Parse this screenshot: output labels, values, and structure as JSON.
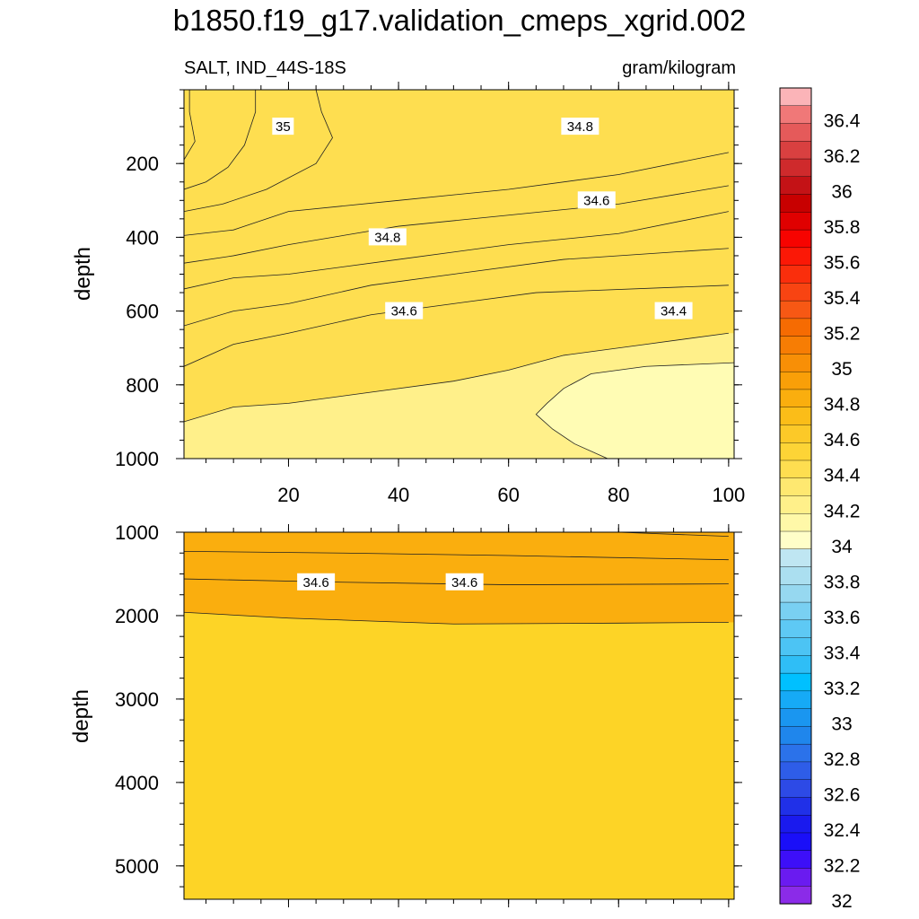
{
  "title": "b1850.f19_g17.validation_cmeps_xgrid.002",
  "chart_data": [
    {
      "type": "contour",
      "panel": "upper",
      "left_string": "SALT, IND_44S-18S",
      "right_string": "gram/kilogram",
      "xlabel": "",
      "ylabel": "depth",
      "xlim": [
        1,
        101
      ],
      "ylim": [
        1000,
        0
      ],
      "xticks": [
        20,
        40,
        60,
        80,
        100
      ],
      "yticks": [
        200,
        400,
        600,
        800,
        1000
      ],
      "contour_levels": [
        35.0,
        34.9,
        34.8,
        34.7,
        34.6,
        34.5,
        34.4
      ],
      "contours": [
        {
          "level": 35.1,
          "points": [
            [
              1,
              190
            ],
            [
              3,
              140
            ],
            [
              2,
              60
            ],
            [
              2,
              0
            ]
          ]
        },
        {
          "level": 35.0,
          "points": [
            [
              1,
              270
            ],
            [
              5,
              250
            ],
            [
              9,
              210
            ],
            [
              12,
              150
            ],
            [
              14,
              60
            ],
            [
              14,
              0
            ]
          ]
        },
        {
          "level": 34.9,
          "points": [
            [
              1,
              330
            ],
            [
              8,
              310
            ],
            [
              16,
              270
            ],
            [
              25,
              200
            ],
            [
              28,
              130
            ],
            [
              26,
              60
            ],
            [
              25,
              0
            ]
          ]
        },
        {
          "level": 34.8,
          "points": [
            [
              1,
              395
            ],
            [
              10,
              380
            ],
            [
              20,
              330
            ],
            [
              40,
              300
            ],
            [
              60,
              270
            ],
            [
              80,
              230
            ],
            [
              100,
              170
            ]
          ]
        },
        {
          "level": 34.7,
          "points": [
            [
              1,
              470
            ],
            [
              10,
              450
            ],
            [
              20,
              420
            ],
            [
              40,
              370
            ],
            [
              60,
              340
            ],
            [
              80,
              310
            ],
            [
              100,
              260
            ]
          ]
        },
        {
          "level": 34.6,
          "points": [
            [
              1,
              540
            ],
            [
              10,
              510
            ],
            [
              20,
              500
            ],
            [
              40,
              460
            ],
            [
              60,
              420
            ],
            [
              80,
              390
            ],
            [
              100,
              330
            ]
          ]
        },
        {
          "level": 34.5,
          "points": [
            [
              1,
              640
            ],
            [
              10,
              600
            ],
            [
              20,
              580
            ],
            [
              35,
              530
            ],
            [
              50,
              500
            ],
            [
              70,
              460
            ],
            [
              100,
              430
            ]
          ]
        },
        {
          "level": 34.4,
          "points": [
            [
              1,
              750
            ],
            [
              10,
              690
            ],
            [
              20,
              660
            ],
            [
              35,
              610
            ],
            [
              50,
              580
            ],
            [
              65,
              550
            ],
            [
              100,
              530
            ]
          ]
        },
        {
          "level": 34.3,
          "points": [
            [
              1,
              900
            ],
            [
              10,
              860
            ],
            [
              20,
              850
            ],
            [
              35,
              820
            ],
            [
              50,
              790
            ],
            [
              60,
              760
            ],
            [
              70,
              720
            ],
            [
              85,
              690
            ],
            [
              100,
              660
            ]
          ]
        },
        {
          "level": 34.2,
          "points": [
            [
              101,
              740
            ],
            [
              85,
              750
            ],
            [
              75,
              770
            ],
            [
              70,
              810
            ],
            [
              67,
              850
            ],
            [
              65,
              880
            ],
            [
              68,
              920
            ],
            [
              72,
              960
            ],
            [
              78,
              1000
            ]
          ]
        }
      ],
      "contour_labels": [
        {
          "text": "35",
          "x": 19,
          "y": 100
        },
        {
          "text": "34.8",
          "x": 38,
          "y": 400
        },
        {
          "text": "34.8",
          "x": 73,
          "y": 100
        },
        {
          "text": "34.6",
          "x": 41,
          "y": 600
        },
        {
          "text": "34.6",
          "x": 76,
          "y": 300
        },
        {
          "text": "34.4",
          "x": 90,
          "y": 600
        }
      ]
    },
    {
      "type": "contour",
      "panel": "lower",
      "xlabel": "",
      "ylabel": "depth",
      "xlim": [
        1,
        101
      ],
      "ylim": [
        5400,
        1000
      ],
      "yticks": [
        1000,
        2000,
        3000,
        4000,
        5000
      ],
      "contour_levels": [
        34.4,
        34.5,
        34.6,
        34.7
      ],
      "contours": [
        {
          "level": 34.4,
          "points": [
            [
              1,
              1000
            ],
            [
              80,
              1000
            ],
            [
              100,
              1050
            ]
          ]
        },
        {
          "level": 34.5,
          "points": [
            [
              1,
              1230
            ],
            [
              30,
              1250
            ],
            [
              60,
              1280
            ],
            [
              100,
              1330
            ]
          ]
        },
        {
          "level": 34.6,
          "points": [
            [
              1,
              1560
            ],
            [
              30,
              1600
            ],
            [
              60,
              1630
            ],
            [
              100,
              1620
            ]
          ]
        },
        {
          "level": 34.7,
          "points": [
            [
              1,
              1960
            ],
            [
              20,
              2030
            ],
            [
              50,
              2100
            ],
            [
              80,
              2090
            ],
            [
              100,
              2080
            ]
          ]
        }
      ],
      "contour_labels": [
        {
          "text": "34.6",
          "x": 25,
          "y": 1600
        },
        {
          "text": "34.6",
          "x": 52,
          "y": 1600
        }
      ]
    }
  ],
  "colorbar": {
    "labels": [
      "36.4",
      "36.2",
      "36",
      "35.8",
      "35.6",
      "35.4",
      "35.2",
      "35",
      "34.8",
      "34.6",
      "34.4",
      "34.2",
      "34",
      "33.8",
      "33.6",
      "33.4",
      "33.2",
      "33",
      "32.8",
      "32.6",
      "32.4",
      "32.2",
      "32"
    ],
    "levels": [
      32.0,
      32.1,
      32.2,
      32.3,
      32.4,
      32.5,
      32.6,
      32.7,
      32.8,
      32.9,
      33.0,
      33.1,
      33.2,
      33.3,
      33.4,
      33.5,
      33.6,
      33.7,
      33.8,
      33.9,
      34.0,
      34.1,
      34.2,
      34.3,
      34.4,
      34.5,
      34.6,
      34.7,
      34.8,
      34.9,
      35.0,
      35.1,
      35.2,
      35.3,
      35.4,
      35.5,
      35.6,
      35.7,
      35.8,
      35.9,
      36.0,
      36.1,
      36.2,
      36.3,
      36.4,
      36.5
    ],
    "colors": [
      "#8b2be8",
      "#6a1bf0",
      "#3d0ff8",
      "#1a0ff8",
      "#1a1aee",
      "#2030e8",
      "#2d4ae6",
      "#2e5de8",
      "#2b72ea",
      "#1f86ec",
      "#1a96f0",
      "#16aaf6",
      "#00c0ff",
      "#2fbef6",
      "#4cc4f4",
      "#5ec9f4",
      "#79d0f2",
      "#96d8f0",
      "#abdff0",
      "#bfe6f2",
      "#fffec8",
      "#fff8a8",
      "#fff08a",
      "#fee870",
      "#fede50",
      "#fdd436",
      "#fcc928",
      "#fbbd18",
      "#faae0e",
      "#f99f08",
      "#f88f06",
      "#f77d04",
      "#f66b02",
      "#f75814",
      "#f84412",
      "#fa2e0c",
      "#fb1806",
      "#f70300",
      "#e00000",
      "#c80000",
      "#c41216",
      "#cf2a2c",
      "#d94040",
      "#e55a5a",
      "#f07878",
      "#fbb4b8"
    ]
  }
}
